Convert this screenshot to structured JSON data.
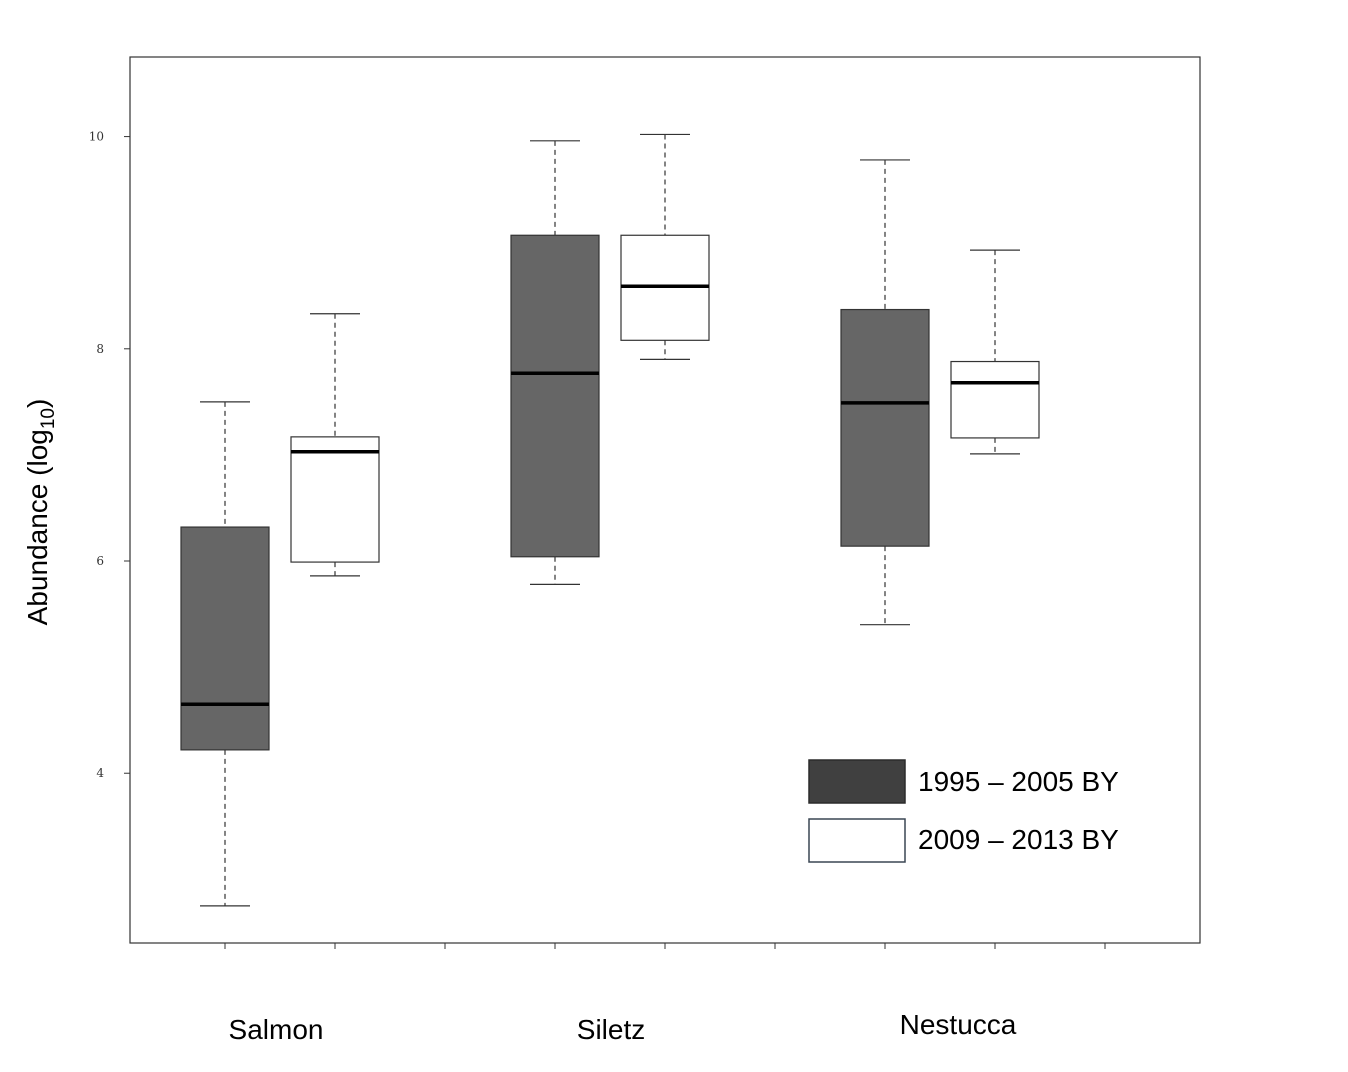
{
  "chart_data": {
    "type": "box",
    "title": "",
    "xlabel": "",
    "ylabel": "Abundance (log",
    "ylabel_sub": "10",
    "ylabel_close": ")",
    "ylim": [
      2.4,
      10.75
    ],
    "yticks": [
      4,
      6,
      8,
      10
    ],
    "ytick_labels": [
      "4",
      "6",
      "8",
      "10"
    ],
    "categories": [
      "Salmon",
      "Siletz",
      "Nestucca"
    ],
    "legend_position": "bottom-right",
    "series": [
      {
        "name": "1995 – 2005 BY",
        "color": "#666666",
        "legend_color": "#404040",
        "boxes": [
          {
            "whisker_low": 2.75,
            "q1": 4.22,
            "median": 4.65,
            "q3": 6.32,
            "whisker_high": 7.5
          },
          {
            "whisker_low": 5.78,
            "q1": 6.04,
            "median": 7.77,
            "q3": 9.07,
            "whisker_high": 9.96
          },
          {
            "whisker_low": 5.4,
            "q1": 6.14,
            "median": 7.49,
            "q3": 8.37,
            "whisker_high": 9.78
          }
        ]
      },
      {
        "name": "2009 – 2013 BY",
        "color": "#ffffff",
        "legend_color": "#ffffff",
        "boxes": [
          {
            "whisker_low": 5.86,
            "q1": 5.99,
            "median": 7.03,
            "q3": 7.17,
            "whisker_high": 8.33
          },
          {
            "whisker_low": 7.9,
            "q1": 8.08,
            "median": 8.59,
            "q3": 9.07,
            "whisker_high": 10.02
          },
          {
            "whisker_low": 7.01,
            "q1": 7.16,
            "median": 7.68,
            "q3": 7.88,
            "whisker_high": 8.93
          }
        ]
      }
    ]
  }
}
